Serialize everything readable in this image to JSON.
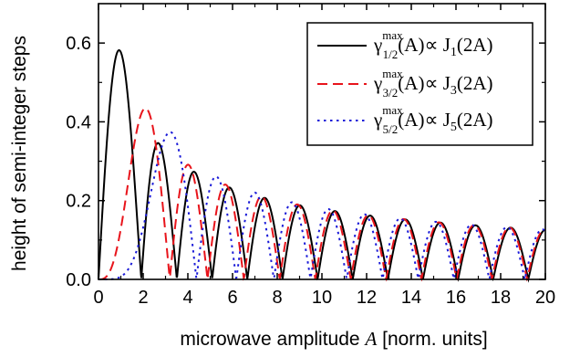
{
  "chart_data": {
    "type": "line",
    "xlabel": "microwave amplitude",
    "xlabel_var": "A",
    "xlabel_unit": "[norm. units]",
    "ylabel": "height of semi-integer steps",
    "xlim": [
      0,
      20
    ],
    "ylim": [
      0,
      0.7
    ],
    "x_ticks": [
      "0",
      "2",
      "4",
      "6",
      "8",
      "10",
      "12",
      "14",
      "16",
      "18",
      "20"
    ],
    "y_ticks": [
      "0.0",
      "0.2",
      "0.4",
      "0.6"
    ],
    "grid": false,
    "legend_position": "top-right",
    "series": [
      {
        "symbol": "γ",
        "sup": "max",
        "sub": "1/2",
        "arg": "(A)∝ J",
        "order_sub": "1",
        "tail": "(2A)",
        "bessel_order": 1,
        "scale": 1.0,
        "style": "solid",
        "color": "#000000"
      },
      {
        "symbol": "γ",
        "sup": "max",
        "sub": "3/2",
        "arg": "(A)∝ J",
        "order_sub": "3",
        "tail": "(2A)",
        "bessel_order": 3,
        "scale": 1.0,
        "style": "dashed",
        "color": "#e8141b"
      },
      {
        "symbol": "γ",
        "sup": "max",
        "sub": "5/2",
        "arg": "(A)∝ J",
        "order_sub": "5",
        "tail": "(2A)",
        "bessel_order": 5,
        "scale": 1.0,
        "style": "dotted",
        "color": "#1a1ad8"
      }
    ]
  }
}
